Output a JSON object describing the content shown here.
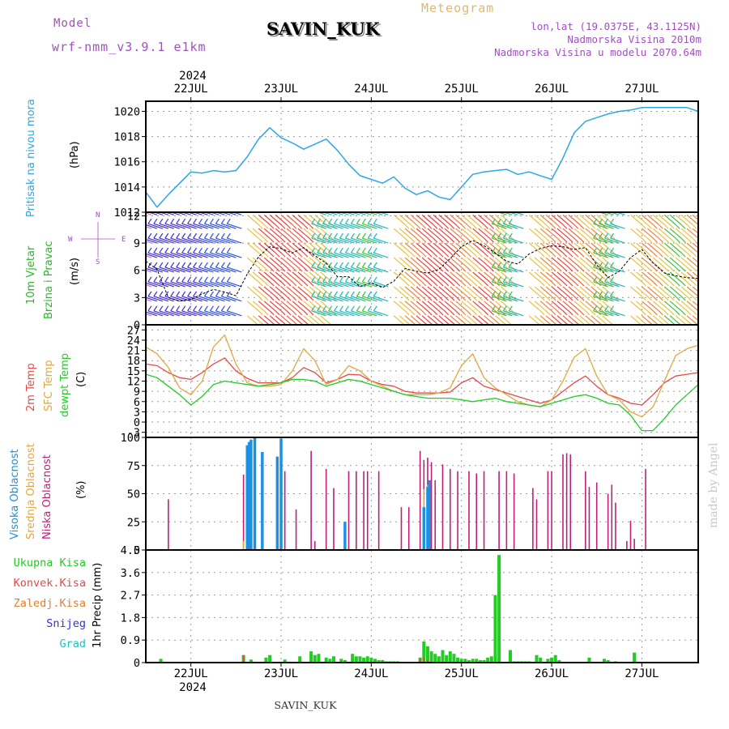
{
  "header": {
    "model_label": "Model",
    "model_name": "wrf-nmm_v3.9.1 e1km",
    "station": "SAVIN_KUK",
    "meteogram": "Meteogram",
    "lonlat": "lon,lat (19.0375E, 43.1125N)",
    "altitude": "Nadmorska Visina 2010m",
    "model_altitude": "Nadmorska Visina u modelu 2070.64m",
    "year": "2024",
    "footer_station": "SAVIN_KUK",
    "watermark": "made by Angel"
  },
  "colors": {
    "pressure": "#2aa8e6",
    "wind_label": "#22bb22",
    "temp2m": "#e84848",
    "sfc": "#e0a840",
    "dewpt": "#22cc22",
    "high_cloud": "#1e90e0",
    "mid_cloud": "#e0a840",
    "low_cloud": "#c0207a",
    "precip": "#22cc22",
    "conv": "#e84848",
    "freezing": "#e08030",
    "snow": "#3030e0",
    "hail": "#20c0c0",
    "header_purple": "#a050c0",
    "meteogram": "#e0b870"
  },
  "chart_data": [
    {
      "id": "pressure",
      "type": "line",
      "ylabel": [
        "Pritisak na nivou mora",
        "(hPa)"
      ],
      "yticks": [
        "1012",
        "1014",
        "1016",
        "1018",
        "1020"
      ],
      "ylim": [
        1012,
        1020.8
      ],
      "x_unit": "hours from 21 JUL 12:00",
      "x": [
        0,
        3,
        6,
        9,
        12,
        15,
        18,
        21,
        24,
        27,
        30,
        33,
        36,
        39,
        42,
        45,
        48,
        51,
        54,
        57,
        60,
        63,
        66,
        69,
        72,
        75,
        78,
        81,
        84,
        87,
        90,
        93,
        96,
        99,
        102,
        105,
        108,
        111,
        114,
        117,
        120,
        123,
        126,
        129,
        132,
        138,
        144,
        147
      ],
      "y": [
        1013.6,
        1012.4,
        1013.4,
        1014.3,
        1015.2,
        1015.1,
        1015.3,
        1015.2,
        1015.3,
        1016.4,
        1017.8,
        1018.7,
        1017.9,
        1017.5,
        1017.0,
        1017.4,
        1017.8,
        1016.9,
        1015.8,
        1014.9,
        1014.6,
        1014.3,
        1014.8,
        1013.9,
        1013.4,
        1013.7,
        1013.2,
        1013.0,
        1014.0,
        1015.0,
        1015.2,
        1015.3,
        1015.4,
        1015.0,
        1015.2,
        1014.9,
        1014.6,
        1016.3,
        1018.3,
        1019.2,
        1019.5,
        1019.8,
        1020.0,
        1020.1,
        1020.3,
        1020.3,
        1020.3,
        1020.0
      ]
    },
    {
      "id": "wind",
      "type": "line",
      "ylabel": [
        "10m Vjetar",
        "Brzina i Pravac",
        "(m/s)"
      ],
      "compass": {
        "west": "W",
        "east": "E",
        "north": "N",
        "south": "S"
      },
      "yticks": [
        "0",
        "3",
        "6",
        "9",
        "12"
      ],
      "ylim": [
        0,
        12.4
      ],
      "x_unit": "hours from 21 JUL 12:00",
      "x": [
        0,
        3,
        6,
        9,
        12,
        15,
        18,
        21,
        24,
        27,
        30,
        33,
        36,
        39,
        42,
        45,
        48,
        51,
        54,
        57,
        60,
        63,
        66,
        69,
        72,
        75,
        78,
        81,
        84,
        87,
        90,
        93,
        96,
        99,
        102,
        105,
        108,
        111,
        114,
        117,
        120,
        123,
        126,
        129,
        132,
        135,
        138,
        141,
        144,
        147
      ],
      "y": [
        7.0,
        6.1,
        3.0,
        2.6,
        2.8,
        3.4,
        3.9,
        3.6,
        3.2,
        5.6,
        7.5,
        8.6,
        8.4,
        7.9,
        8.5,
        7.6,
        6.8,
        5.3,
        5.3,
        4.2,
        4.6,
        4.1,
        4.8,
        6.2,
        5.9,
        5.7,
        6.1,
        7.3,
        8.6,
        9.3,
        8.7,
        7.9,
        7.0,
        6.7,
        7.8,
        8.4,
        8.7,
        8.6,
        8.3,
        8.5,
        6.6,
        5.2,
        5.9,
        7.4,
        8.3,
        6.8,
        5.7,
        5.4,
        5.2,
        5.1
      ],
      "barb_colors": [
        "#d46ad8",
        "#4030d0",
        "#4030d0",
        "#4030d0",
        "#4030d0",
        "#4030d0",
        "#3050e0",
        "#3050e0",
        "#3050e0",
        "#e8c040",
        "#f04040",
        "#f04040",
        "#f06040",
        "#f04040",
        "#e8c040",
        "#e8c040",
        "#20b8b8",
        "#20b8b8",
        "#20b8b8",
        "#20b8b8",
        "#40c040",
        "#20b8b8",
        "#e8c040",
        "#f08040",
        "#f04040",
        "#f04040",
        "#f04040",
        "#f08040",
        "#e8c040",
        "#f04040",
        "#f08040",
        "#e8c040",
        "#40c040",
        "#20b8b8",
        "#e8c040",
        "#f08040",
        "#f04040",
        "#f06040",
        "#e8c040",
        "#f08040",
        "#e8c040",
        "#40c040",
        "#20b8b8",
        "#e8c040",
        "#f08040",
        "#e8c040",
        "#40c040",
        "#e8c040",
        "#f08040",
        "#e8c040"
      ]
    },
    {
      "id": "temperature",
      "type": "line",
      "ylabel": [
        "2m Temp",
        "SFC Temp",
        "dewpt Temp",
        "(C)"
      ],
      "yticks": [
        "-3",
        "0",
        "3",
        "6",
        "9",
        "12",
        "15",
        "18",
        "21",
        "24",
        "27"
      ],
      "ylim": [
        -4.5,
        28.5
      ],
      "x_unit": "hours from 21 JUL 12:00",
      "x": [
        0,
        3,
        6,
        9,
        12,
        15,
        18,
        21,
        24,
        27,
        30,
        33,
        36,
        39,
        42,
        45,
        48,
        51,
        54,
        57,
        60,
        63,
        66,
        69,
        72,
        75,
        78,
        81,
        84,
        87,
        90,
        93,
        96,
        99,
        102,
        105,
        108,
        111,
        114,
        117,
        120,
        123,
        126,
        129,
        132,
        135,
        138,
        141,
        144,
        147
      ],
      "series": [
        {
          "name": "2m Temp",
          "color": "#e84848",
          "y": [
            17.0,
            16.5,
            14.5,
            13.0,
            12.5,
            14.5,
            17.0,
            18.8,
            15.0,
            12.8,
            11.5,
            11.5,
            11.5,
            13.0,
            16.0,
            14.5,
            11.5,
            12.5,
            14.0,
            13.8,
            12.0,
            11.0,
            10.5,
            9.0,
            8.5,
            8.5,
            8.5,
            8.8,
            11.5,
            13.0,
            10.5,
            9.5,
            8.5,
            7.5,
            6.5,
            5.5,
            6.5,
            9.0,
            11.5,
            13.5,
            10.5,
            8.0,
            7.0,
            5.5,
            5.0,
            8.0,
            11.5,
            13.5,
            14.0,
            14.5
          ]
        },
        {
          "name": "SFC Temp",
          "color": "#e0a840",
          "y": [
            22.0,
            20.0,
            16.0,
            10.0,
            8.0,
            12.0,
            22.0,
            25.5,
            17.0,
            11.5,
            10.5,
            10.5,
            11.0,
            15.0,
            21.5,
            18.0,
            11.0,
            12.5,
            16.5,
            15.0,
            12.0,
            10.5,
            9.0,
            8.0,
            8.0,
            8.0,
            8.5,
            10.0,
            16.5,
            20.0,
            13.0,
            10.0,
            8.0,
            6.0,
            5.0,
            4.5,
            6.5,
            12.0,
            19.0,
            21.5,
            13.5,
            8.0,
            6.5,
            3.0,
            1.5,
            4.5,
            12.0,
            19.5,
            21.5,
            22.5
          ]
        },
        {
          "name": "dewpt Temp",
          "color": "#22cc22",
          "y": [
            14.0,
            13.0,
            10.5,
            8.0,
            5.0,
            7.5,
            11.0,
            12.0,
            11.5,
            11.0,
            10.5,
            11.0,
            11.5,
            12.5,
            12.5,
            12.0,
            10.5,
            11.5,
            12.5,
            12.0,
            11.0,
            10.0,
            9.0,
            8.0,
            7.5,
            7.0,
            7.0,
            7.0,
            6.5,
            6.0,
            6.5,
            7.0,
            6.0,
            5.5,
            5.0,
            4.5,
            5.5,
            6.5,
            7.5,
            8.0,
            7.0,
            5.5,
            5.0,
            2.0,
            -2.5,
            -2.5,
            1.0,
            5.0,
            8.0,
            11.0
          ]
        }
      ]
    },
    {
      "id": "cloud",
      "type": "bar",
      "ylabel": [
        "Visoka Oblacnost",
        "Srednja Oblacnost",
        "Niska Oblacnost",
        "(%)"
      ],
      "yticks": [
        "0",
        "25",
        "50",
        "75",
        "100"
      ],
      "ylim": [
        0,
        100
      ],
      "x_unit": "hours from 21 JUL 12:00",
      "series": [
        {
          "name": "Niska Oblacnost",
          "color": "#c0207a",
          "x": [
            6,
            26,
            29,
            36,
            37,
            40,
            44,
            45,
            48,
            50,
            54,
            56,
            58,
            59,
            62,
            68,
            70,
            73,
            74,
            75,
            76,
            77,
            79,
            81,
            83,
            86,
            88,
            90,
            94,
            96,
            98,
            103,
            104,
            107,
            108,
            111,
            112,
            113,
            117,
            118,
            120,
            123,
            124,
            125,
            128,
            129,
            130,
            133
          ],
          "y": [
            45,
            67,
            48,
            70,
            70,
            36,
            88,
            8,
            72,
            55,
            70,
            70,
            70,
            70,
            70,
            38,
            38,
            88,
            80,
            82,
            78,
            62,
            76,
            72,
            70,
            70,
            68,
            70,
            70,
            70,
            68,
            55,
            45,
            70,
            70,
            85,
            86,
            85,
            70,
            56,
            60,
            50,
            58,
            42,
            8,
            26,
            10,
            72
          ]
        },
        {
          "name": "Srednja Oblacnost",
          "color": "#e0a840",
          "x": [
            26,
            74,
            75
          ],
          "y": [
            8,
            54,
            58
          ]
        },
        {
          "name": "Visoka Oblacnost",
          "color": "#1e90e0",
          "x": [
            27,
            27.5,
            28,
            29,
            31,
            35,
            36,
            53,
            74,
            75,
            75.5
          ],
          "y": [
            93,
            96,
            98,
            100,
            87,
            83,
            99,
            25,
            38,
            56,
            62
          ]
        }
      ]
    },
    {
      "id": "precip",
      "type": "bar",
      "ylabel": [
        "1hr Precip (mm)"
      ],
      "legend": [
        "Ukupna Kisa",
        "Konvek.Kisa",
        "Zaledj.Kisa",
        "Snijeg",
        "Grad"
      ],
      "yticks": [
        "0",
        "0.9",
        "1.8",
        "2.7",
        "3.6",
        "4.5"
      ],
      "ylim": [
        0,
        4.5
      ],
      "x_unit": "hours from 21 JUL 12:00",
      "series": [
        {
          "name": "Ukupna Kisa",
          "color": "#22cc22",
          "x": [
            4,
            26,
            28,
            32,
            33,
            37,
            41,
            44,
            45,
            46,
            48,
            49,
            50,
            52,
            53,
            55,
            56,
            57,
            58,
            59,
            60,
            61,
            62,
            63,
            64,
            65,
            66,
            67,
            73,
            74,
            75,
            76,
            77,
            78,
            79,
            80,
            81,
            82,
            83,
            84,
            85,
            86,
            87,
            88,
            89,
            90,
            91,
            92,
            93,
            94,
            97,
            98,
            99,
            100,
            101,
            102,
            104,
            105,
            107,
            108,
            109,
            110,
            118,
            122,
            123,
            125,
            130
          ],
          "y": [
            0.15,
            0.3,
            0.12,
            0.2,
            0.3,
            0.12,
            0.25,
            0.45,
            0.3,
            0.35,
            0.2,
            0.15,
            0.25,
            0.15,
            0.1,
            0.35,
            0.25,
            0.25,
            0.2,
            0.25,
            0.2,
            0.15,
            0.1,
            0.1,
            0.05,
            0.05,
            0.05,
            0.05,
            0.2,
            0.85,
            0.65,
            0.45,
            0.35,
            0.25,
            0.5,
            0.3,
            0.45,
            0.35,
            0.2,
            0.15,
            0.15,
            0.1,
            0.15,
            0.15,
            0.1,
            0.1,
            0.2,
            0.25,
            2.7,
            4.3,
            0.5,
            0.05,
            0.05,
            0.05,
            0.05,
            0.05,
            0.3,
            0.2,
            0.15,
            0.2,
            0.3,
            0.1,
            0.2,
            0.15,
            0.1,
            0.05,
            0.4
          ]
        },
        {
          "name": "Konvek.Kisa",
          "color": "#e84848",
          "x": [
            26,
            73,
            74,
            75
          ],
          "y": [
            0.3,
            0.15,
            0.2,
            0.1
          ]
        }
      ]
    }
  ],
  "x_axis": {
    "days": [
      "22JUL",
      "23JUL",
      "24JUL",
      "25JUL",
      "26JUL",
      "27JUL"
    ],
    "day_hours": [
      12,
      36,
      60,
      84,
      108,
      132
    ],
    "xlim_hours": [
      0,
      147
    ]
  }
}
